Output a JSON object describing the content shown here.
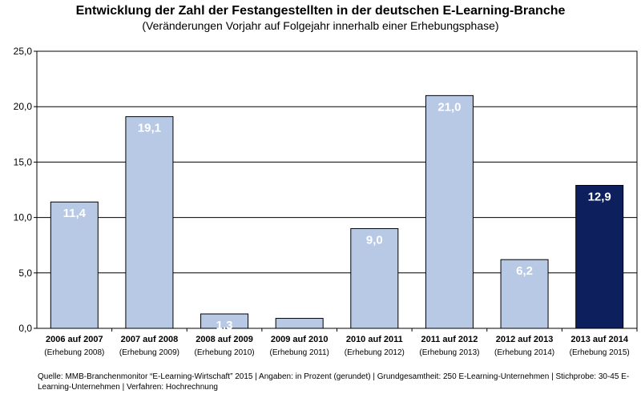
{
  "chart_data": {
    "type": "bar",
    "title": "Entwicklung der Zahl der Festangestellten in der deutschen E-Learning-Branche",
    "subtitle": "(Veränderungen Vorjahr auf Folgejahr innerhalb einer Erhebungsphase)",
    "categories": [
      "2006 auf 2007",
      "2007 auf 2008",
      "2008 auf 2009",
      "2009 auf 2010",
      "2010 auf 2011",
      "2011 auf 2012",
      "2012 auf 2013",
      "2013 auf 2014"
    ],
    "sublabels": [
      "(Erhebung 2008)",
      "(Erhebung 2009)",
      "(Erhebung 2010)",
      "(Erhebung 2011)",
      "(Erhebung 2012)",
      "(Erhebung 2013)",
      "(Erhebung 2014)",
      "(Erhebung 2015)"
    ],
    "values": [
      11.4,
      19.1,
      1.3,
      0.9,
      9.0,
      21.0,
      6.2,
      12.9
    ],
    "value_labels": [
      "11,4",
      "19,1",
      "1,3",
      "",
      "9,0",
      "21,0",
      "6,2",
      "12,9"
    ],
    "highlight_index": 7,
    "yticks": [
      "0,0",
      "5,0",
      "10,0",
      "15,0",
      "20,0",
      "25,0"
    ],
    "ylim": [
      0,
      25
    ],
    "grid": true,
    "colors": {
      "bar": "#b8c9e6",
      "highlight": "#0d1f5c",
      "grid": "#000000",
      "label": "#ffffff"
    }
  },
  "source": "Quelle: MMB-Branchenmonitor “E-Learning-Wirtschaft” 2015 | Angaben: in Prozent (gerundet) | Grundgesamtheit: 250 E-Learning-Unternehmen | Stichprobe: 30-45 E-Learning-Unternehmen | Verfahren: Hochrechnung"
}
